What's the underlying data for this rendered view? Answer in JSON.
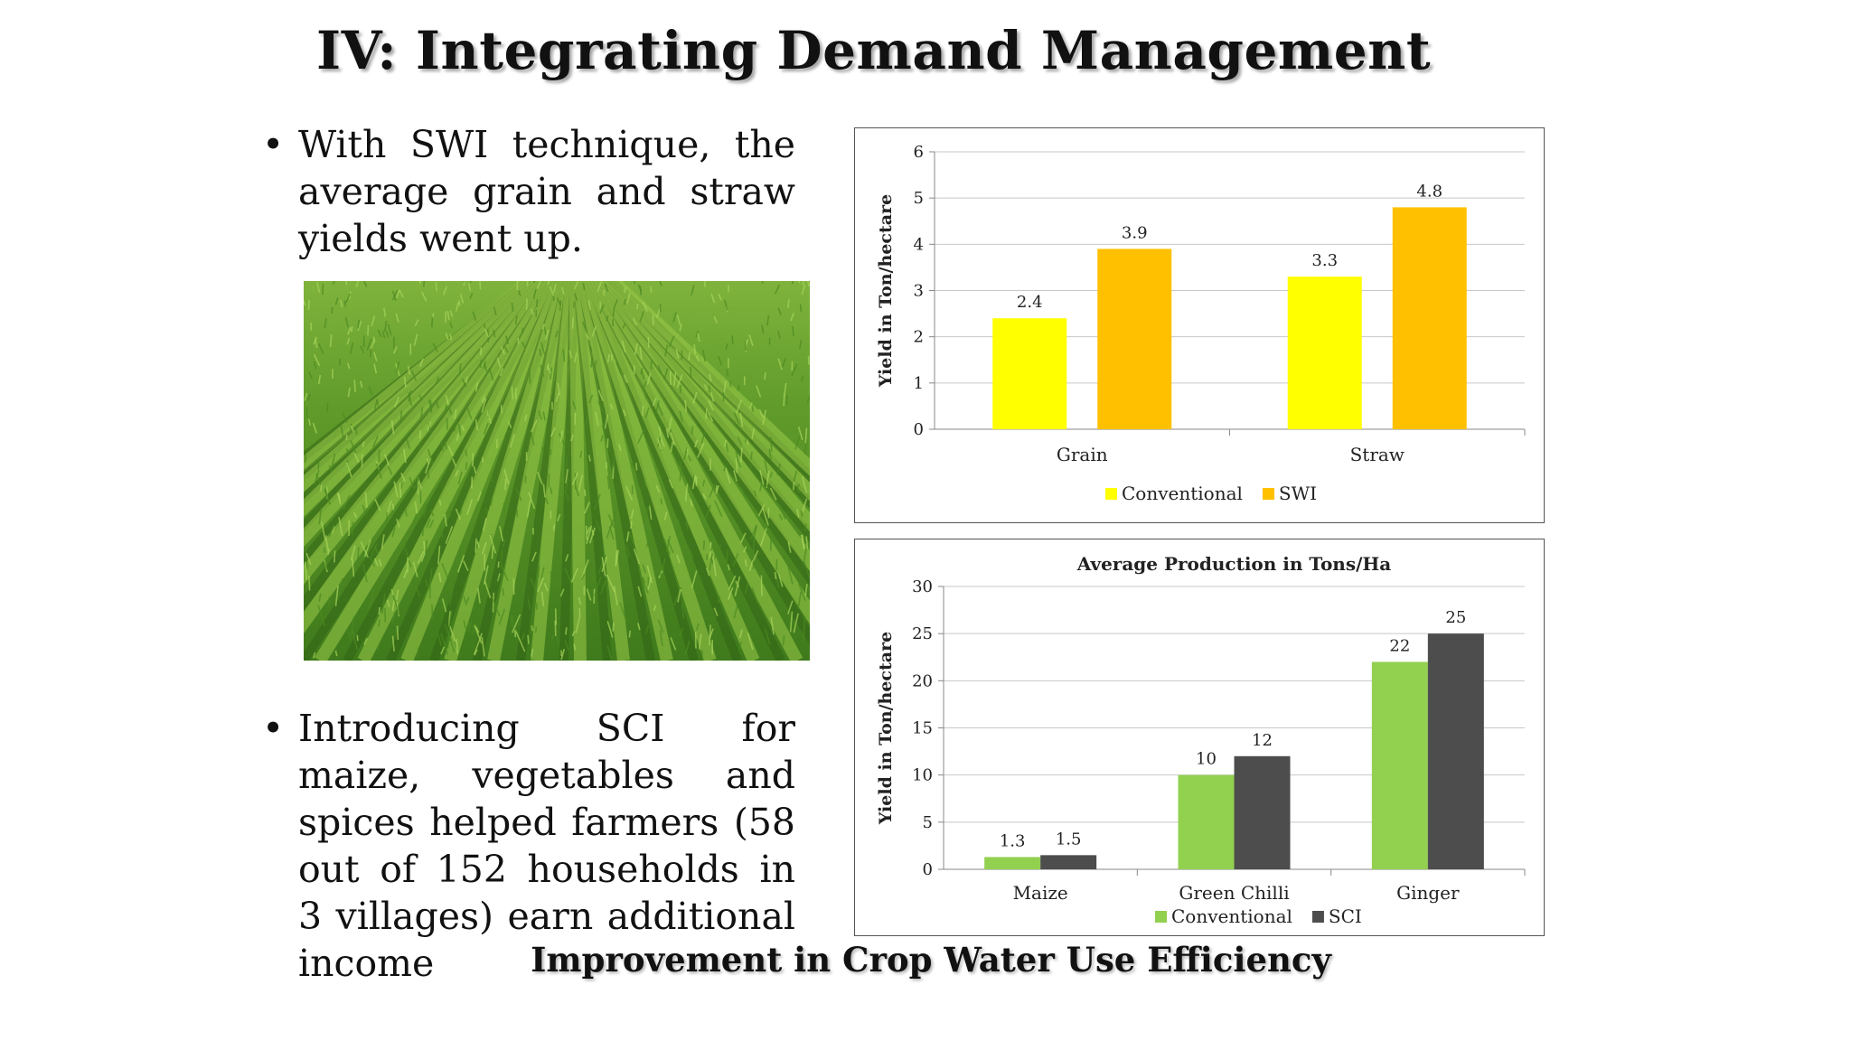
{
  "slide": {
    "title": "IV: Integrating Demand Management",
    "bullets": [
      "With SWI technique, the average grain and straw yields went up.",
      "Introducing SCI for maize, vegetables and spices helped farmers (58 out of 152 households in 3 villages) earn additional income"
    ],
    "caption": "Improvement in Crop Water Use Efficiency"
  },
  "photo": {
    "icon": "rice-field-photo"
  },
  "chart_data": [
    {
      "type": "bar",
      "title": "",
      "categories": [
        "Grain",
        "Straw"
      ],
      "series": [
        {
          "name": "Conventional",
          "values": [
            2.4,
            3.3
          ],
          "color": "#FFFF00"
        },
        {
          "name": "SWI",
          "values": [
            3.9,
            4.8
          ],
          "color": "#FFC000"
        }
      ],
      "xlabel": "",
      "ylabel": "Yield in Ton/hectare",
      "ylim": [
        0,
        6
      ],
      "yticks": [
        0,
        1,
        2,
        3,
        4,
        5,
        6
      ],
      "grid": true,
      "legend": "bottom"
    },
    {
      "type": "bar",
      "title": "Average Production in Tons/Ha",
      "categories": [
        "Maize",
        "Green Chilli",
        "Ginger"
      ],
      "series": [
        {
          "name": "Conventional",
          "values": [
            1.3,
            10,
            22
          ],
          "color": "#92D050"
        },
        {
          "name": "SCI",
          "values": [
            1.5,
            12,
            25
          ],
          "color": "#4D4D4D"
        }
      ],
      "xlabel": "",
      "ylabel": "Yield in Ton/hectare",
      "ylim": [
        0,
        30
      ],
      "yticks": [
        0,
        5,
        10,
        15,
        20,
        25,
        30
      ],
      "grid": true,
      "legend": "bottom"
    }
  ]
}
